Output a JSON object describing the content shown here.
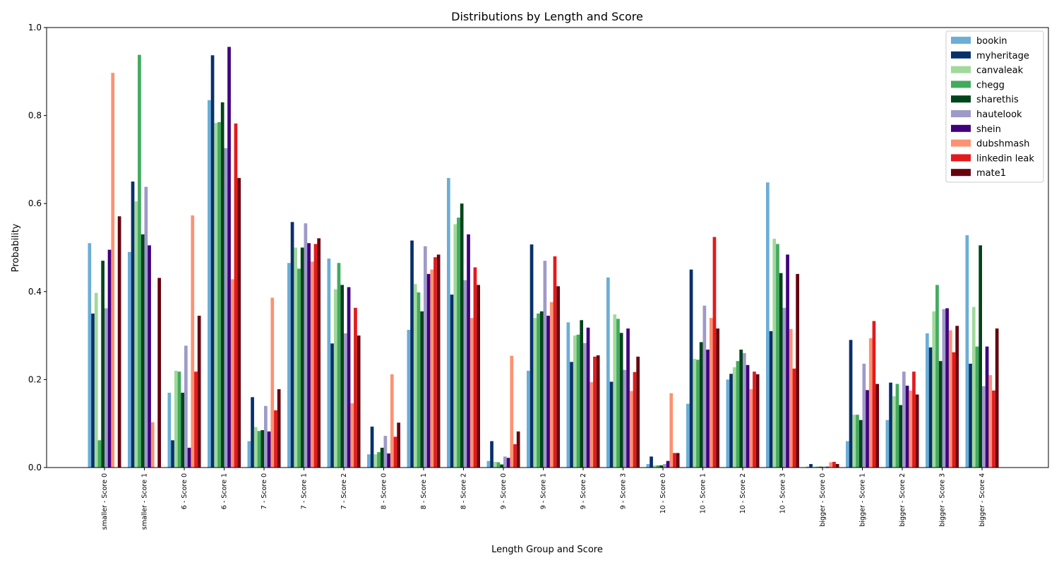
{
  "chart_data": {
    "type": "bar",
    "title": "Distributions by Length and Score",
    "xlabel": "Length Group and Score",
    "ylabel": "Probability",
    "ylim": [
      0,
      1.0
    ],
    "yticks": [
      "0.0",
      "0.2",
      "0.4",
      "0.6",
      "0.8",
      "1.0"
    ],
    "grid": false,
    "legend_position": "top-right",
    "categories": [
      "smaller - Score 0",
      "smaller - Score 1",
      "6 - Score 0",
      "6 - Score 1",
      "7 - Score 0",
      "7 - Score 1",
      "7 - Score 2",
      "8 - Score 0",
      "8 - Score 1",
      "8 - Score 2",
      "9 - Score 0",
      "9 - Score 1",
      "9 - Score 2",
      "9 - Score 3",
      "10 - Score 0",
      "10 - Score 1",
      "10 - Score 2",
      "10 - Score 3",
      "bigger - Score 0",
      "bigger - Score 1",
      "bigger - Score 2",
      "bigger - Score 3",
      "bigger - Score 4"
    ],
    "series": [
      {
        "name": "bookin",
        "color": "#6baed6",
        "values": [
          0.51,
          0.49,
          0.17,
          0.835,
          0.06,
          0.465,
          0.475,
          0.03,
          0.313,
          0.658,
          0.015,
          0.22,
          0.33,
          0.432,
          0.008,
          0.145,
          0.2,
          0.648,
          0.002,
          0.06,
          0.108,
          0.305,
          0.528
        ]
      },
      {
        "name": "myheritage",
        "color": "#08306b",
        "values": [
          0.35,
          0.65,
          0.062,
          0.937,
          0.16,
          0.558,
          0.282,
          0.093,
          0.516,
          0.393,
          0.06,
          0.507,
          0.24,
          0.195,
          0.025,
          0.45,
          0.213,
          0.31,
          0.008,
          0.29,
          0.193,
          0.273,
          0.236
        ]
      },
      {
        "name": "canvaleak",
        "color": "#a1d99b",
        "values": [
          0.397,
          0.605,
          0.22,
          0.783,
          0.092,
          0.5,
          0.405,
          0.03,
          0.417,
          0.553,
          0.013,
          0.34,
          0.3,
          0.348,
          0.005,
          0.247,
          0.228,
          0.52,
          0.002,
          0.12,
          0.162,
          0.355,
          0.365
        ]
      },
      {
        "name": "chegg",
        "color": "#41ab5d",
        "values": [
          0.062,
          0.938,
          0.218,
          0.785,
          0.083,
          0.452,
          0.465,
          0.035,
          0.398,
          0.568,
          0.012,
          0.35,
          0.302,
          0.338,
          0.005,
          0.245,
          0.242,
          0.508,
          0.002,
          0.12,
          0.19,
          0.415,
          0.275
        ]
      },
      {
        "name": "sharethis",
        "color": "#00441b",
        "values": [
          0.47,
          0.53,
          0.17,
          0.83,
          0.085,
          0.5,
          0.415,
          0.045,
          0.355,
          0.6,
          0.007,
          0.355,
          0.335,
          0.306,
          0.005,
          0.285,
          0.268,
          0.442,
          0.002,
          0.108,
          0.142,
          0.242,
          0.505
        ]
      },
      {
        "name": "hautelook",
        "color": "#9e9ac8",
        "values": [
          0.362,
          0.638,
          0.277,
          0.726,
          0.14,
          0.555,
          0.305,
          0.072,
          0.503,
          0.426,
          0.025,
          0.47,
          0.283,
          0.222,
          0.008,
          0.368,
          0.26,
          0.363,
          0.002,
          0.236,
          0.218,
          0.36,
          0.185
        ]
      },
      {
        "name": "shein",
        "color": "#3f007d",
        "values": [
          0.495,
          0.505,
          0.045,
          0.956,
          0.082,
          0.51,
          0.41,
          0.032,
          0.44,
          0.53,
          0.022,
          0.345,
          0.318,
          0.316,
          0.015,
          0.268,
          0.233,
          0.484,
          0.002,
          0.176,
          0.186,
          0.362,
          0.275
        ]
      },
      {
        "name": "dubshmash",
        "color": "#fc9272",
        "values": [
          0.897,
          0.103,
          0.573,
          0.428,
          0.386,
          0.468,
          0.146,
          0.212,
          0.45,
          0.34,
          0.254,
          0.376,
          0.194,
          0.174,
          0.169,
          0.34,
          0.178,
          0.315,
          0.012,
          0.294,
          0.175,
          0.312,
          0.21
        ]
      },
      {
        "name": "linkedin leak",
        "color": "#e31a1c",
        "values": [
          0.0,
          0.0,
          0.218,
          0.782,
          0.13,
          0.508,
          0.363,
          0.07,
          0.478,
          0.455,
          0.053,
          0.48,
          0.252,
          0.217,
          0.033,
          0.524,
          0.218,
          0.225,
          0.013,
          0.333,
          0.218,
          0.262,
          0.175
        ]
      },
      {
        "name": "mate1",
        "color": "#67000d",
        "values": [
          0.571,
          0.431,
          0.345,
          0.658,
          0.178,
          0.521,
          0.3,
          0.102,
          0.484,
          0.415,
          0.082,
          0.412,
          0.255,
          0.252,
          0.033,
          0.316,
          0.212,
          0.44,
          0.008,
          0.19,
          0.166,
          0.322,
          0.316
        ]
      }
    ]
  }
}
